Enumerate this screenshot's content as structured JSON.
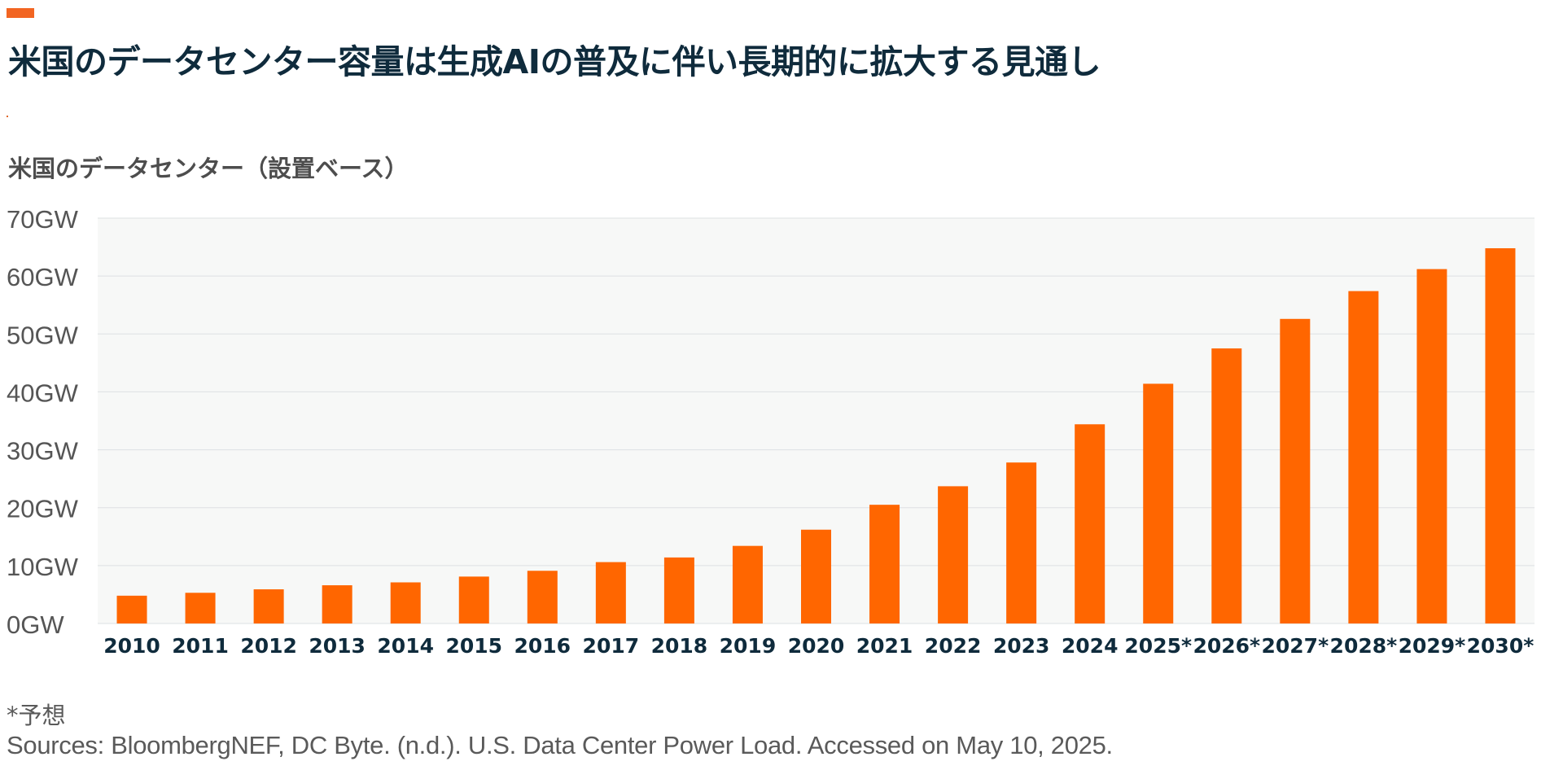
{
  "header": {
    "title": "米国のデータセンター容量は生成AIの普及に伴い長期的に拡大する見通し",
    "accent_color": "#f26522"
  },
  "chart_data": {
    "type": "bar",
    "title": "米国のデータセンター（設置ベース）",
    "categories": [
      "2010",
      "2011",
      "2012",
      "2013",
      "2014",
      "2015",
      "2016",
      "2017",
      "2018",
      "2019",
      "2020",
      "2021",
      "2022",
      "2023",
      "2024",
      "2025*",
      "2026*",
      "2027*",
      "2028*",
      "2029*",
      "2030*"
    ],
    "values": [
      4.8,
      5.3,
      5.9,
      6.6,
      7.1,
      8.1,
      9.1,
      10.6,
      11.4,
      13.4,
      16.2,
      20.5,
      23.7,
      27.8,
      34.4,
      41.4,
      47.5,
      52.6,
      57.4,
      61.2,
      64.8
    ],
    "y_ticks": [
      "0GW",
      "10GW",
      "20GW",
      "30GW",
      "40GW",
      "50GW",
      "60GW",
      "70GW"
    ],
    "ylim": [
      0,
      70
    ],
    "unit": "GW",
    "grid": true,
    "bar_color": "#ff6600",
    "plot_background": "#f7f8f7"
  },
  "footer": {
    "footnote": "*予想",
    "sources": "Sources: BloombergNEF, DC Byte. (n.d.). U.S. Data Center Power Load. Accessed on May 10, 2025."
  }
}
